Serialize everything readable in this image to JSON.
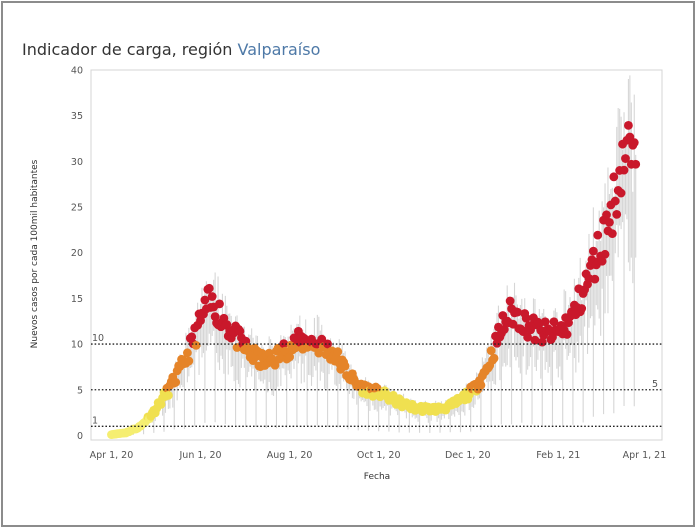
{
  "chart_data": {
    "type": "scatter",
    "title_prefix": "Indicador de carga, región",
    "title_region": "Valparaíso",
    "xlabel": "Fecha",
    "ylabel": "Nuevos casos por cada 100mil habitantes",
    "x_range_days": [
      -14,
      377
    ],
    "x_origin_date": "2020-04-01",
    "y_range": [
      -0.5,
      40
    ],
    "y_ticks": [
      0,
      5,
      10,
      15,
      20,
      25,
      30,
      35,
      40
    ],
    "x_ticks": [
      {
        "day": 0,
        "label": "Apr 1, 20"
      },
      {
        "day": 61,
        "label": "Jun 1, 20"
      },
      {
        "day": 122,
        "label": "Aug 1, 20"
      },
      {
        "day": 183,
        "label": "Oct 1, 20"
      },
      {
        "day": 244,
        "label": "Dec 1, 20"
      },
      {
        "day": 306,
        "label": "Feb 1, 21"
      },
      {
        "day": 365,
        "label": "Apr 1, 21"
      }
    ],
    "reference_lines": [
      {
        "value": 10,
        "label": "10",
        "side": "left"
      },
      {
        "value": 5,
        "label": "5",
        "side": "right"
      },
      {
        "value": 1,
        "label": "1",
        "side": "left"
      }
    ],
    "color_scale": [
      {
        "max": 2,
        "color": "#f5ee71"
      },
      {
        "max": 5,
        "color": "#f0e050"
      },
      {
        "max": 10,
        "color": "#e58429"
      },
      {
        "max": 1000,
        "color": "#c9182b"
      }
    ],
    "trend_keypoints": [
      [
        0,
        0.1
      ],
      [
        10,
        0.3
      ],
      [
        20,
        1.0
      ],
      [
        30,
        2.8
      ],
      [
        40,
        5.2
      ],
      [
        50,
        8.0
      ],
      [
        60,
        12.0
      ],
      [
        66,
        14.5
      ],
      [
        72,
        13.8
      ],
      [
        80,
        12.0
      ],
      [
        88,
        10.2
      ],
      [
        96,
        8.8
      ],
      [
        104,
        8.0
      ],
      [
        112,
        8.5
      ],
      [
        120,
        9.5
      ],
      [
        128,
        10.2
      ],
      [
        136,
        10.3
      ],
      [
        144,
        9.8
      ],
      [
        152,
        9.0
      ],
      [
        160,
        7.2
      ],
      [
        168,
        5.5
      ],
      [
        176,
        5.0
      ],
      [
        184,
        4.6
      ],
      [
        192,
        4.0
      ],
      [
        200,
        3.4
      ],
      [
        208,
        3.0
      ],
      [
        216,
        2.9
      ],
      [
        224,
        2.9
      ],
      [
        232,
        3.2
      ],
      [
        240,
        4.0
      ],
      [
        248,
        5.0
      ],
      [
        256,
        7.0
      ],
      [
        262,
        9.5
      ],
      [
        268,
        12.0
      ],
      [
        274,
        13.5
      ],
      [
        280,
        12.8
      ],
      [
        290,
        11.5
      ],
      [
        300,
        11.0
      ],
      [
        308,
        11.5
      ],
      [
        316,
        13.0
      ],
      [
        324,
        16.0
      ],
      [
        332,
        19.5
      ],
      [
        340,
        23.0
      ],
      [
        346,
        27.0
      ],
      [
        350,
        30.5
      ],
      [
        355,
        31.5
      ],
      [
        359,
        28.0
      ]
    ]
  }
}
